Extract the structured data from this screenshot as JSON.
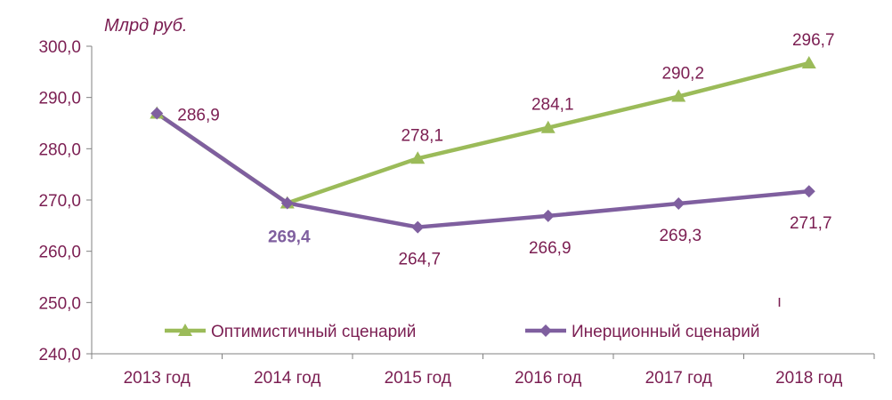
{
  "chart_data": {
    "type": "line",
    "unit_label": "Млрд руб.",
    "categories": [
      "2013 год",
      "2014 год",
      "2015 год",
      "2016 год",
      "2017 год",
      "2018 год"
    ],
    "ylim": [
      240,
      300
    ],
    "yticks": [
      "240,0",
      "250,0",
      "260,0",
      "270,0",
      "280,0",
      "290,0",
      "300,0"
    ],
    "grid": false,
    "legend_position": "bottom",
    "series": [
      {
        "name": "Оптимистичный сценарий",
        "color": "#9bbb59",
        "marker": "triangle",
        "values": [
          286.9,
          269.4,
          278.1,
          284.1,
          290.2,
          296.7
        ],
        "labels": [
          "",
          "",
          "278,1",
          "284,1",
          "290,2",
          "296,7"
        ]
      },
      {
        "name": "Инерционный сценарий",
        "color": "#7f5f9f",
        "marker": "diamond",
        "values": [
          286.9,
          269.4,
          264.7,
          266.9,
          269.3,
          271.7
        ],
        "labels": [
          "286,9",
          "269,4",
          "264,7",
          "266,9",
          "269,3",
          "271,7"
        ]
      }
    ]
  },
  "colors": {
    "text": "#7b1e52",
    "axis": "#808080"
  },
  "stray_mark": "ı"
}
